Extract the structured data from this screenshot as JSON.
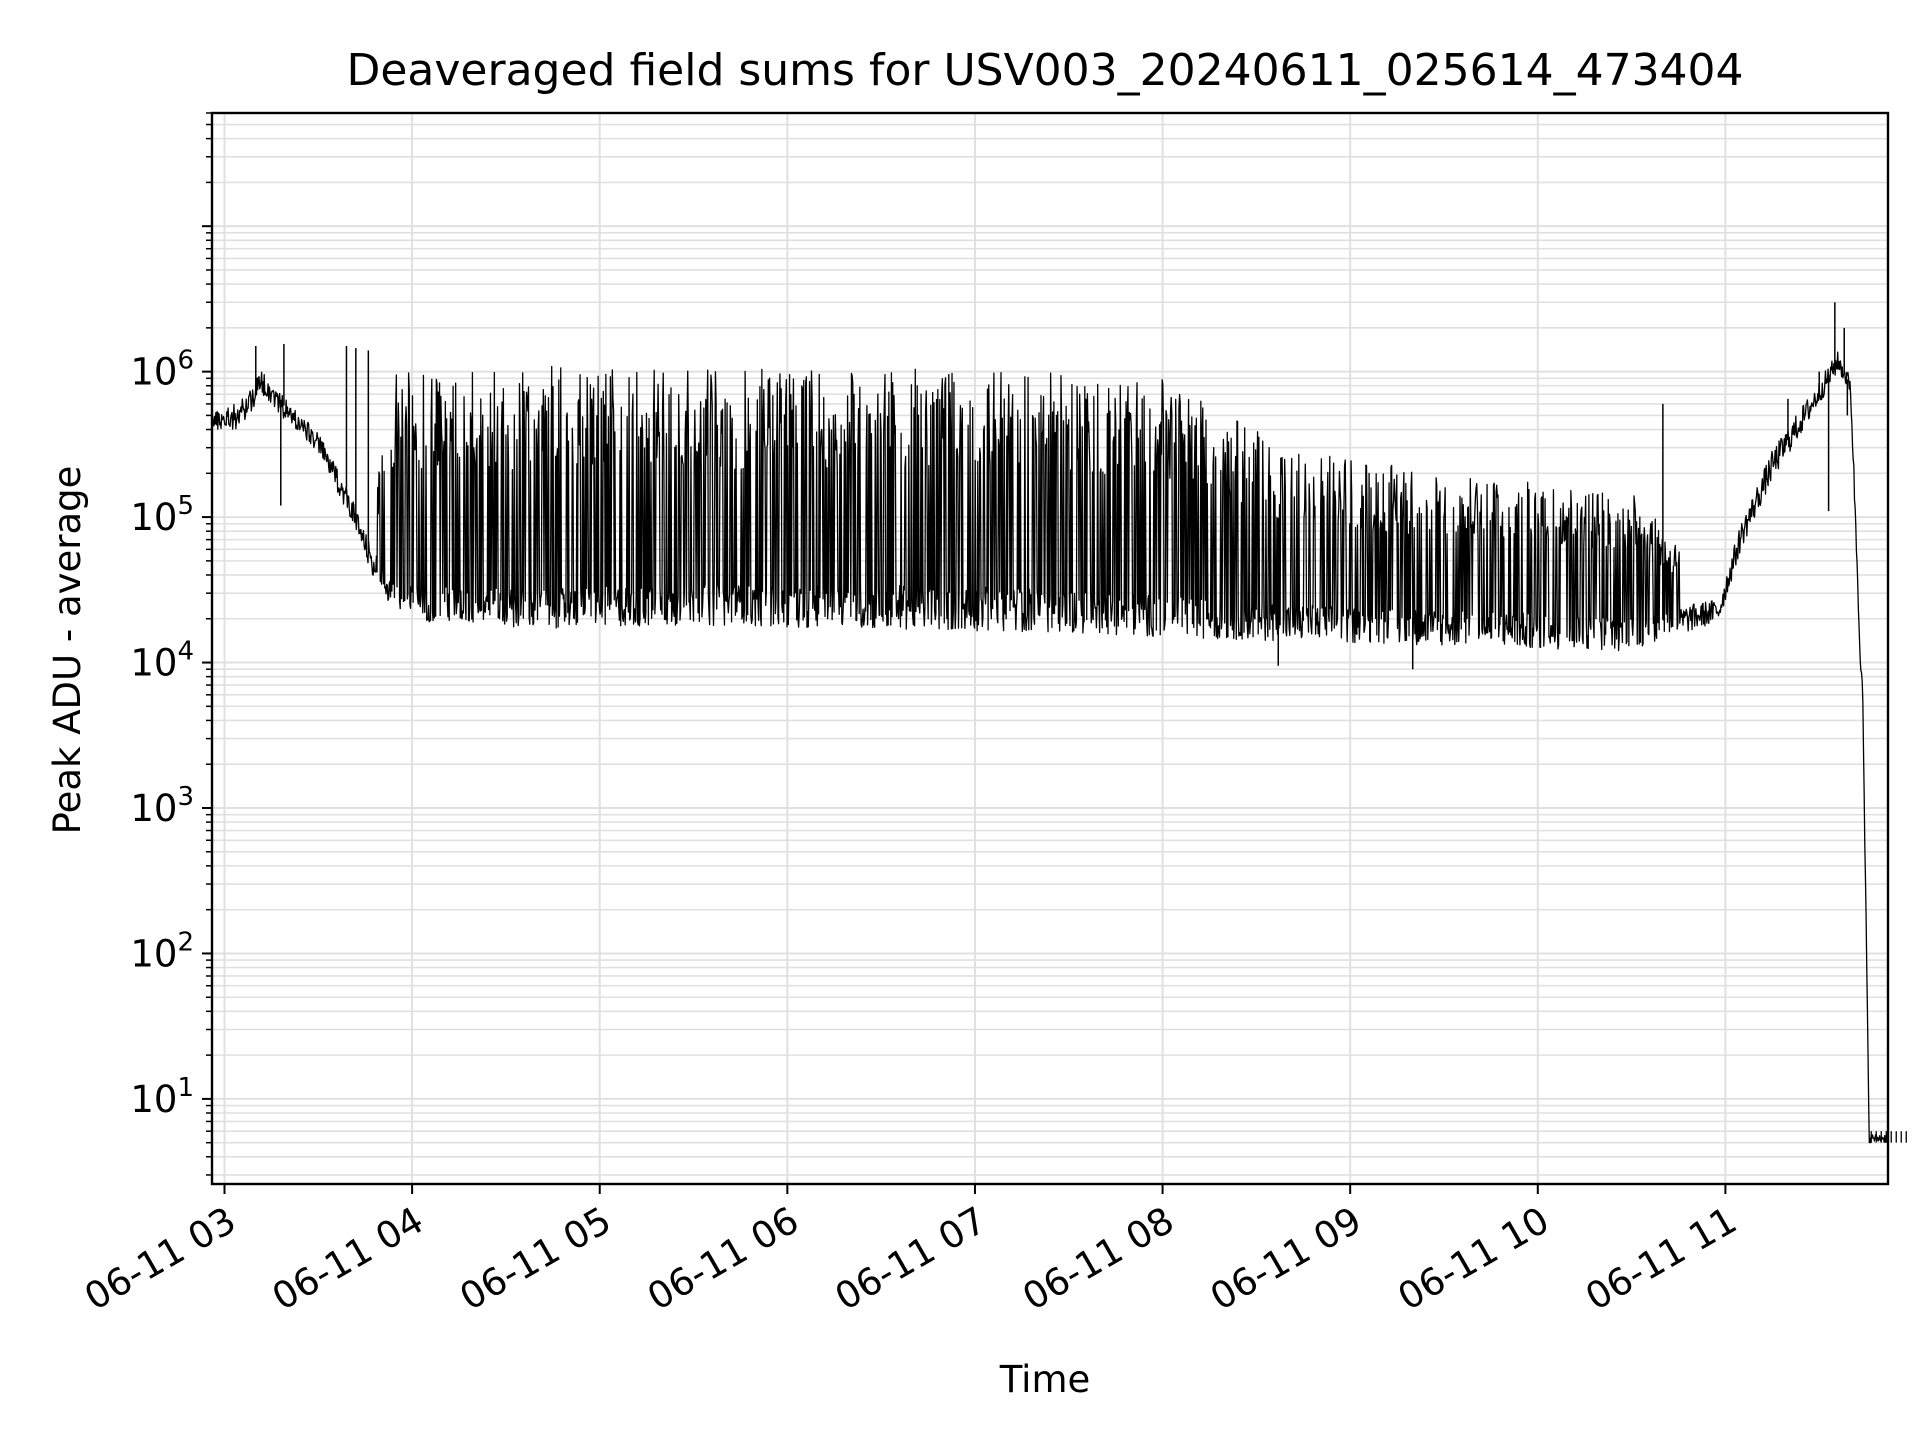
{
  "chart_data": {
    "type": "line",
    "title": "Deaveraged field sums for USV003_20240611_025614_473404",
    "xlabel": "Time",
    "ylabel": "Peak ADU - average",
    "yscale": "log",
    "ylim": [
      2.6,
      60000000
    ],
    "xlim": [
      "2024-06-11 02:56",
      "2024-06-11 11:52"
    ],
    "grid": true,
    "line_color": "#000000",
    "grid_color": "#e0e0e0",
    "x_ticks": [
      {
        "time": "2024-06-11 03:00",
        "label": "06-11 03"
      },
      {
        "time": "2024-06-11 04:00",
        "label": "06-11 04"
      },
      {
        "time": "2024-06-11 05:00",
        "label": "06-11 05"
      },
      {
        "time": "2024-06-11 06:00",
        "label": "06-11 06"
      },
      {
        "time": "2024-06-11 07:00",
        "label": "06-11 07"
      },
      {
        "time": "2024-06-11 08:00",
        "label": "06-11 08"
      },
      {
        "time": "2024-06-11 09:00",
        "label": "06-11 09"
      },
      {
        "time": "2024-06-11 10:00",
        "label": "06-11 10"
      },
      {
        "time": "2024-06-11 11:00",
        "label": "06-11 11"
      }
    ],
    "y_ticks": [
      {
        "value": 10,
        "base": "10",
        "exp": "1"
      },
      {
        "value": 100,
        "base": "10",
        "exp": "2"
      },
      {
        "value": 1000,
        "base": "10",
        "exp": "3"
      },
      {
        "value": 10000,
        "base": "10",
        "exp": "4"
      },
      {
        "value": 100000,
        "base": "10",
        "exp": "5"
      },
      {
        "value": 1000000,
        "base": "10",
        "exp": "6"
      }
    ],
    "envelope": [
      {
        "t": "2024-06-11 02:56",
        "low": 400000,
        "high": 550000,
        "mid": 450000
      },
      {
        "t": "2024-06-11 03:05",
        "low": 400000,
        "high": 650000,
        "mid": 550000
      },
      {
        "t": "2024-06-11 03:12",
        "low": 700000,
        "high": 1100000,
        "mid": 900000
      },
      {
        "t": "2024-06-11 03:20",
        "low": 450000,
        "high": 800000,
        "mid": 550000
      },
      {
        "t": "2024-06-11 03:30",
        "low": 280000,
        "high": 400000,
        "mid": 330000
      },
      {
        "t": "2024-06-11 03:40",
        "low": 100000,
        "high": 180000,
        "mid": 130000
      },
      {
        "t": "2024-06-11 03:46",
        "low": 45000,
        "high": 80000,
        "mid": 60000
      },
      {
        "t": "2024-06-11 03:55",
        "low": 20000,
        "high": 1000000,
        "mid": 30000
      },
      {
        "t": "2024-06-11 04:30",
        "low": 17000,
        "high": 1100000,
        "mid": 28000
      },
      {
        "t": "2024-06-11 05:30",
        "low": 18000,
        "high": 1050000,
        "mid": 30000
      },
      {
        "t": "2024-06-11 06:30",
        "low": 17000,
        "high": 1050000,
        "mid": 30000
      },
      {
        "t": "2024-06-11 07:30",
        "low": 16000,
        "high": 1000000,
        "mid": 28000
      },
      {
        "t": "2024-06-11 08:00",
        "low": 15000,
        "high": 900000,
        "mid": 25000
      },
      {
        "t": "2024-06-11 08:40",
        "low": 14000,
        "high": 300000,
        "mid": 22000
      },
      {
        "t": "2024-06-11 09:30",
        "low": 13000,
        "high": 200000,
        "mid": 20000
      },
      {
        "t": "2024-06-11 10:30",
        "low": 12000,
        "high": 150000,
        "mid": 18000
      },
      {
        "t": "2024-06-11 10:58",
        "low": 19000,
        "high": 30000,
        "mid": 24000
      },
      {
        "t": "2024-06-11 11:05",
        "low": 60000,
        "high": 100000,
        "mid": 80000
      },
      {
        "t": "2024-06-11 11:15",
        "low": 180000,
        "high": 300000,
        "mid": 250000
      },
      {
        "t": "2024-06-11 11:28",
        "low": 500000,
        "high": 800000,
        "mid": 650000
      },
      {
        "t": "2024-06-11 11:36",
        "low": 1000000,
        "high": 1300000,
        "mid": 1200000
      },
      {
        "t": "2024-06-11 11:40",
        "low": 700000,
        "high": 900000,
        "mid": 800000
      },
      {
        "t": "2024-06-11 11:44",
        "low": 3000,
        "high": 8000,
        "mid": 5000
      },
      {
        "t": "2024-06-11 11:46",
        "low": 5,
        "high": 6,
        "mid": 5
      },
      {
        "t": "2024-06-11 11:52",
        "low": 5,
        "high": 6,
        "mid": 5
      }
    ],
    "spikes": [
      {
        "t": "2024-06-11 03:18",
        "value": 120000
      },
      {
        "t": "2024-06-11 03:10",
        "value": 1500000
      },
      {
        "t": "2024-06-11 03:19",
        "value": 1550000
      },
      {
        "t": "2024-06-11 03:39",
        "value": 1500000
      },
      {
        "t": "2024-06-11 03:42",
        "value": 1450000
      },
      {
        "t": "2024-06-11 03:46",
        "value": 1400000
      },
      {
        "t": "2024-06-11 08:37",
        "value": 9500
      },
      {
        "t": "2024-06-11 09:20",
        "value": 9000
      },
      {
        "t": "2024-06-11 10:40",
        "value": 600000
      },
      {
        "t": "2024-06-11 11:20",
        "value": 650000
      },
      {
        "t": "2024-06-11 11:30",
        "value": 1000000
      },
      {
        "t": "2024-06-11 11:33",
        "value": 110000
      },
      {
        "t": "2024-06-11 11:35",
        "value": 3000000
      },
      {
        "t": "2024-06-11 11:38",
        "value": 2000000
      },
      {
        "t": "2024-06-11 11:39",
        "value": 500000
      }
    ]
  }
}
